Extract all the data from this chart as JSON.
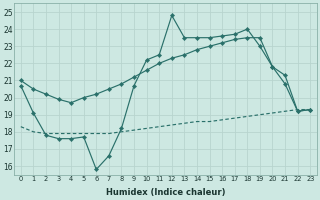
{
  "xlabel": "Humidex (Indice chaleur)",
  "x_ticks": [
    0,
    1,
    2,
    3,
    4,
    5,
    6,
    7,
    8,
    9,
    10,
    11,
    12,
    13,
    14,
    15,
    16,
    17,
    18,
    19,
    20,
    21,
    22,
    23
  ],
  "ylim": [
    15.5,
    25.5
  ],
  "xlim": [
    -0.5,
    23.5
  ],
  "yticks": [
    16,
    17,
    18,
    19,
    20,
    21,
    22,
    23,
    24,
    25
  ],
  "bg_color": "#cde8e2",
  "grid_color": "#b8d4ce",
  "line_color": "#2a706a",
  "line1_y": [
    20.7,
    19.1,
    17.8,
    17.6,
    17.6,
    17.7,
    15.8,
    16.6,
    18.2,
    20.7,
    22.2,
    22.5,
    24.8,
    23.5,
    23.5,
    23.5,
    23.6,
    23.7,
    24.0,
    23.0,
    21.8,
    20.8,
    19.2,
    19.3
  ],
  "line2_y": [
    21.0,
    20.5,
    20.2,
    19.9,
    19.7,
    20.0,
    20.2,
    20.5,
    20.8,
    21.2,
    21.6,
    22.0,
    22.3,
    22.5,
    22.8,
    23.0,
    23.2,
    23.4,
    23.5,
    23.5,
    21.8,
    21.3,
    19.2,
    19.3
  ],
  "line3_y": [
    18.3,
    18.0,
    17.9,
    17.9,
    17.9,
    17.9,
    17.9,
    17.9,
    18.0,
    18.1,
    18.2,
    18.3,
    18.4,
    18.5,
    18.6,
    18.6,
    18.7,
    18.8,
    18.9,
    19.0,
    19.1,
    19.2,
    19.3,
    19.3
  ]
}
